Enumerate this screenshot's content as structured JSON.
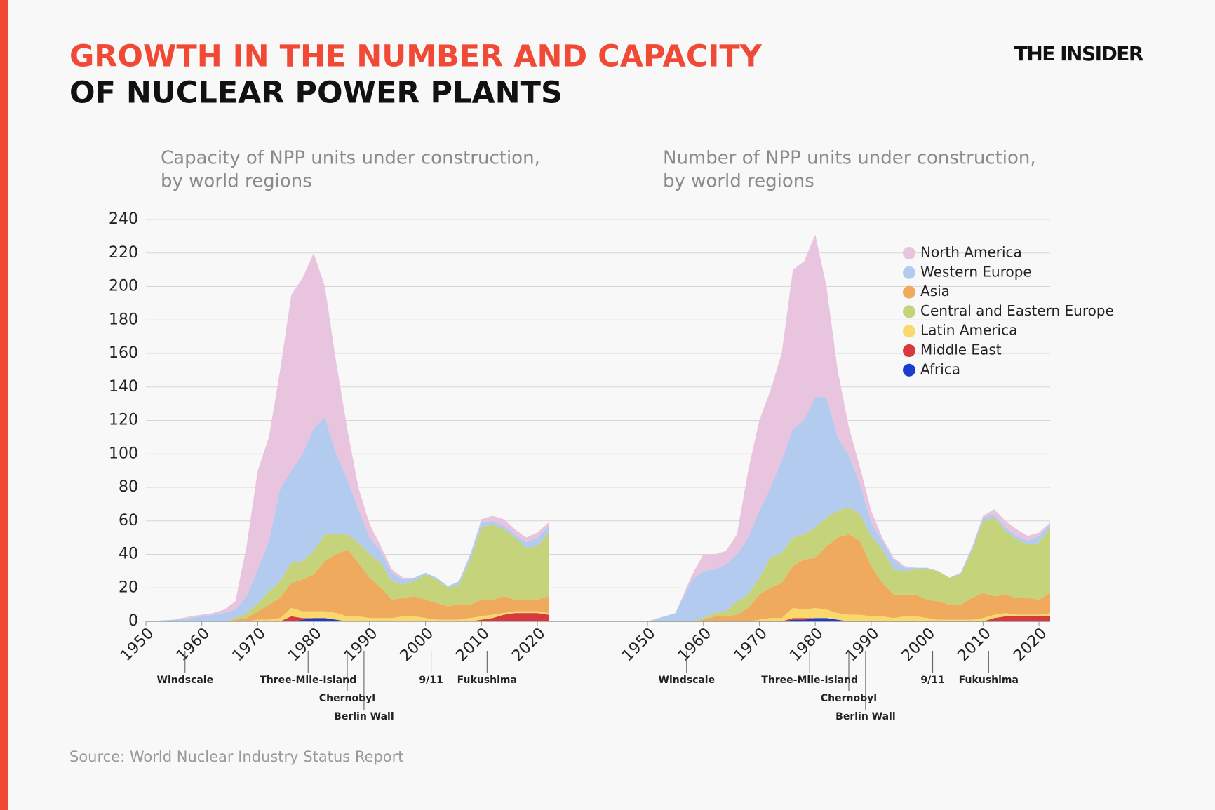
{
  "header": {
    "title_lines": [
      "GROWTH IN THE NUMBER AND CAPACITY",
      "OF NUCLEAR POWER PLANTS"
    ],
    "brand": "THE INSIDER"
  },
  "source": "Source: World Nuclear Industry Status Report",
  "chart_data": [
    {
      "type": "stacked_area",
      "title": [
        "Capacity of NPP units under construction,",
        "by world regions"
      ],
      "x": [
        1950,
        1955,
        1958,
        1960,
        1962,
        1964,
        1966,
        1968,
        1970,
        1972,
        1974,
        1976,
        1978,
        1980,
        1982,
        1984,
        1986,
        1988,
        1990,
        1992,
        1994,
        1996,
        1998,
        2000,
        2002,
        2004,
        2006,
        2008,
        2010,
        2012,
        2014,
        2016,
        2018,
        2020,
        2022
      ],
      "xlim": [
        1950,
        2022
      ],
      "xticks": [
        1950,
        1960,
        1970,
        1980,
        1990,
        2000,
        2010,
        2020
      ],
      "ylim": [
        0,
        240
      ],
      "yticks": [
        0,
        20,
        40,
        60,
        80,
        100,
        120,
        140,
        160,
        180,
        200,
        220,
        240
      ],
      "grid": true,
      "series": [
        {
          "color": "#e8c4de",
          "values": [
            0,
            0,
            1,
            1,
            1,
            2,
            5,
            30,
            59,
            62,
            71,
            105,
            105,
            105,
            78,
            55,
            30,
            13,
            8,
            3,
            2,
            1,
            0,
            0,
            0,
            0,
            0,
            0,
            2,
            3,
            4,
            3,
            3,
            3,
            2
          ]
        },
        {
          "color": "#b3cbef",
          "values": [
            0,
            1,
            2,
            3,
            4,
            5,
            5,
            10,
            20,
            30,
            55,
            55,
            64,
            73,
            70,
            48,
            33,
            20,
            10,
            7,
            5,
            3,
            2,
            1,
            1,
            1,
            2,
            3,
            3,
            2,
            2,
            2,
            3,
            5,
            4
          ]
        },
        {
          "color": "#f0aa5e",
          "values": [
            0,
            0,
            0,
            0,
            0,
            0,
            1,
            2,
            5,
            9,
            12,
            15,
            19,
            22,
            30,
            35,
            40,
            32,
            24,
            18,
            11,
            11,
            12,
            11,
            10,
            8,
            9,
            8,
            10,
            9,
            10,
            7,
            7,
            7,
            10
          ]
        },
        {
          "color": "#c5d47a",
          "values": [
            0,
            0,
            0,
            0,
            0,
            0,
            1,
            3,
            5,
            8,
            10,
            12,
            11,
            14,
            16,
            12,
            9,
            12,
            14,
            15,
            11,
            8,
            9,
            15,
            14,
            11,
            12,
            27,
            43,
            45,
            40,
            37,
            31,
            32,
            38
          ]
        },
        {
          "color": "#fad86b",
          "values": [
            0,
            0,
            0,
            0,
            0,
            0,
            0,
            0,
            1,
            1,
            2,
            5,
            4,
            4,
            4,
            4,
            3,
            3,
            2,
            2,
            2,
            3,
            3,
            2,
            1,
            1,
            1,
            2,
            2,
            2,
            1,
            1,
            1,
            1,
            1
          ]
        },
        {
          "color": "#d63a3f",
          "values": [
            0,
            0,
            0,
            0,
            0,
            0,
            0,
            0,
            0,
            0,
            0,
            3,
            1,
            0,
            0,
            0,
            0,
            0,
            0,
            0,
            0,
            0,
            0,
            0,
            0,
            0,
            0,
            0,
            1,
            2,
            4,
            5,
            5,
            5,
            4
          ]
        },
        {
          "color": "#1b3ccc",
          "values": [
            0,
            0,
            0,
            0,
            0,
            0,
            0,
            0,
            0,
            0,
            0,
            0,
            1,
            2,
            2,
            1,
            0,
            0,
            0,
            0,
            0,
            0,
            0,
            0,
            0,
            0,
            0,
            0,
            0,
            0,
            0,
            0,
            0,
            0,
            0
          ]
        }
      ],
      "annotations": [
        {
          "label": "Windscale",
          "x": 1957
        },
        {
          "label": "Three-Mile-Island",
          "x": 1979
        },
        {
          "label": "Chernobyl",
          "x": 1986
        },
        {
          "label": "Berlin Wall",
          "x": 1989
        },
        {
          "label": "9/11",
          "x": 2001
        },
        {
          "label": "Fukushima",
          "x": 2011
        }
      ]
    },
    {
      "type": "stacked_area",
      "title": [
        "Number of NPP units under construction,",
        "by world regions"
      ],
      "x": [
        1950,
        1955,
        1958,
        1960,
        1962,
        1964,
        1966,
        1968,
        1970,
        1972,
        1974,
        1976,
        1978,
        1980,
        1982,
        1984,
        1986,
        1988,
        1990,
        1992,
        1994,
        1996,
        1998,
        2000,
        2002,
        2004,
        2006,
        2008,
        2010,
        2012,
        2014,
        2016,
        2018,
        2020,
        2022
      ],
      "xlim": [
        1950,
        2022
      ],
      "xticks": [
        1950,
        1960,
        1970,
        1980,
        1990,
        2000,
        2010,
        2020
      ],
      "ylim": [
        0,
        240
      ],
      "legend": "upper right",
      "series": [
        {
          "name": "North America",
          "color": "#e8c4de",
          "values": [
            0,
            0,
            3,
            10,
            9,
            8,
            12,
            40,
            54,
            58,
            64,
            95,
            95,
            97,
            66,
            40,
            17,
            10,
            7,
            2,
            1,
            1,
            0,
            0,
            0,
            0,
            0,
            0,
            1,
            3,
            4,
            4,
            3,
            2,
            1
          ]
        },
        {
          "name": "Western Europe",
          "color": "#b3cbef",
          "values": [
            0,
            5,
            25,
            28,
            26,
            28,
            28,
            34,
            40,
            42,
            55,
            65,
            68,
            78,
            72,
            44,
            31,
            18,
            8,
            5,
            6,
            2,
            1,
            1,
            0,
            0,
            1,
            2,
            2,
            2,
            2,
            2,
            2,
            4,
            2
          ]
        },
        {
          "name": "Asia",
          "color": "#f0aa5e",
          "values": [
            0,
            0,
            0,
            1,
            3,
            3,
            4,
            8,
            15,
            18,
            21,
            25,
            30,
            30,
            38,
            45,
            48,
            44,
            30,
            20,
            14,
            13,
            13,
            11,
            11,
            9,
            9,
            13,
            15,
            11,
            11,
            10,
            10,
            9,
            12
          ]
        },
        {
          "name": "Central and Eastern Europe",
          "color": "#c5d47a",
          "values": [
            0,
            0,
            0,
            1,
            2,
            3,
            8,
            8,
            10,
            18,
            18,
            17,
            15,
            18,
            17,
            16,
            16,
            16,
            18,
            20,
            15,
            14,
            15,
            18,
            18,
            16,
            18,
            28,
            43,
            47,
            38,
            35,
            32,
            34,
            39
          ]
        },
        {
          "name": "Latin America",
          "color": "#fad86b",
          "values": [
            0,
            0,
            0,
            0,
            0,
            0,
            0,
            0,
            1,
            2,
            2,
            6,
            5,
            6,
            5,
            4,
            4,
            4,
            3,
            3,
            2,
            3,
            3,
            2,
            1,
            1,
            1,
            1,
            2,
            2,
            2,
            1,
            1,
            1,
            2
          ]
        },
        {
          "name": "Middle East",
          "color": "#d63a3f",
          "values": [
            0,
            0,
            0,
            0,
            0,
            0,
            0,
            0,
            0,
            0,
            0,
            1,
            1,
            0,
            0,
            0,
            0,
            0,
            0,
            0,
            0,
            0,
            0,
            0,
            0,
            0,
            0,
            0,
            0,
            2,
            3,
            3,
            3,
            3,
            3
          ]
        },
        {
          "name": "Africa",
          "color": "#1b3ccc",
          "values": [
            0,
            0,
            0,
            0,
            0,
            0,
            0,
            0,
            0,
            0,
            0,
            1,
            1,
            2,
            2,
            1,
            0,
            0,
            0,
            0,
            0,
            0,
            0,
            0,
            0,
            0,
            0,
            0,
            0,
            0,
            0,
            0,
            0,
            0,
            0
          ]
        }
      ],
      "annotations": [
        {
          "label": "Windscale",
          "x": 1957
        },
        {
          "label": "Three-Mile-Island",
          "x": 1979
        },
        {
          "label": "Chernobyl",
          "x": 1986
        },
        {
          "label": "Berlin Wall",
          "x": 1989
        },
        {
          "label": "9/11",
          "x": 2001
        },
        {
          "label": "Fukushima",
          "x": 2011
        }
      ]
    }
  ]
}
